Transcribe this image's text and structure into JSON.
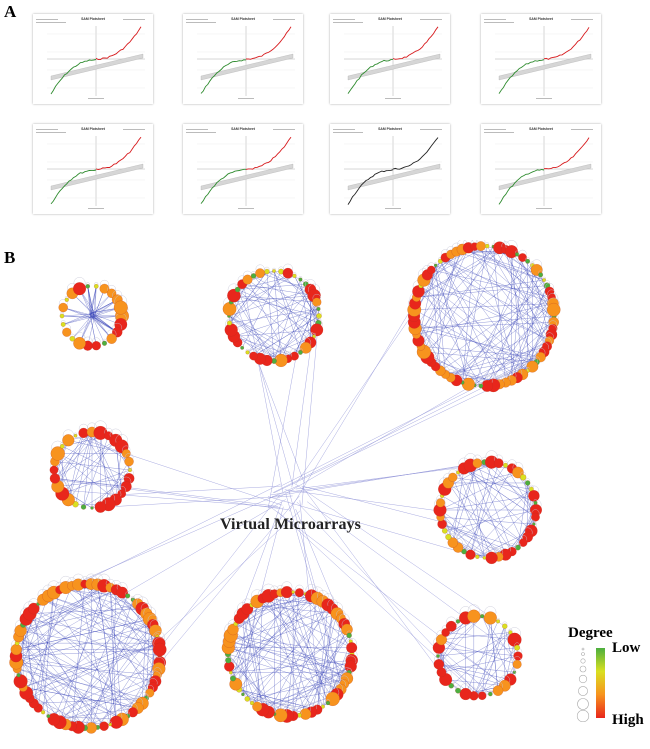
{
  "panel_a": {
    "label": "A",
    "plots": [
      {
        "title": "SAM Plotsheet"
      },
      {
        "title": "SAM Plotsheet"
      },
      {
        "title": "SAM Plotsheet"
      },
      {
        "title": "SAM Plotsheet"
      },
      {
        "title": "SAM Plotsheet"
      },
      {
        "title": "SAM Plotsheet"
      },
      {
        "title": "SAM Plotsheet"
      },
      {
        "title": "SAM Plotsheet"
      }
    ]
  },
  "panel_b": {
    "label": "B",
    "center_label": "Virtual Microarrays",
    "legend": {
      "title": "Degree",
      "low": "Low",
      "high": "High"
    },
    "colors": {
      "edge": "#8c8fd6",
      "high": "#e8261c",
      "mid": "#f7931e",
      "low": "#4caf3f",
      "yellow": "#d9e021"
    }
  }
}
